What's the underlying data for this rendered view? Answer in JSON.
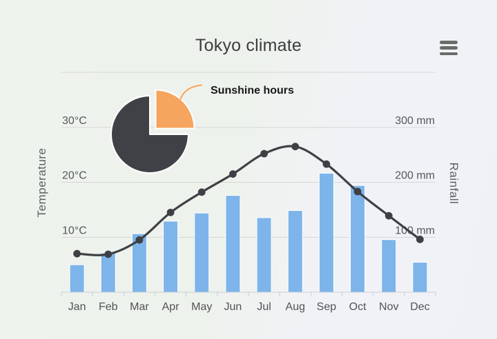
{
  "header": {
    "title": "Tokyo climate"
  },
  "menu": {
    "icon": "hamburger-icon"
  },
  "axes": {
    "x": {
      "categories": [
        "Jan",
        "Feb",
        "Mar",
        "Apr",
        "May",
        "Jun",
        "Jul",
        "Aug",
        "Sep",
        "Oct",
        "Nov",
        "Dec"
      ]
    },
    "temperature": {
      "title": "Temperature",
      "ticks": [
        {
          "value": 10,
          "label": "10°C"
        },
        {
          "value": 20,
          "label": "20°C"
        },
        {
          "value": 30,
          "label": "30°C"
        }
      ],
      "min_value": 0,
      "max_value": 40
    },
    "rainfall": {
      "title": "Rainfall",
      "ticks": [
        {
          "value": 100,
          "label": "100 mm"
        },
        {
          "value": 200,
          "label": "200 mm"
        },
        {
          "value": 300,
          "label": "300 mm"
        }
      ],
      "grid_values": [
        100,
        200,
        300,
        400
      ],
      "min_value": 0,
      "max_value": 400
    }
  },
  "chart_data": [
    {
      "type": "bar",
      "name": "Rainfall",
      "axis": "rainfall",
      "unit": "mm",
      "categories": [
        "Jan",
        "Feb",
        "Mar",
        "Apr",
        "May",
        "Jun",
        "Jul",
        "Aug",
        "Sep",
        "Oct",
        "Nov",
        "Dec"
      ],
      "values": [
        49.9,
        71.5,
        106.4,
        129.2,
        144.0,
        176.0,
        135.6,
        148.5,
        216.4,
        194.1,
        95.6,
        54.4
      ],
      "ylim": [
        0,
        400
      ],
      "color": "#7db4ea",
      "border_color": "#ffffff",
      "legend": "none"
    },
    {
      "type": "line",
      "name": "Temperature",
      "axis": "temperature",
      "unit": "°C",
      "line_style": "spline",
      "marker": "circle",
      "categories": [
        "Jan",
        "Feb",
        "Mar",
        "Apr",
        "May",
        "Jun",
        "Jul",
        "Aug",
        "Sep",
        "Oct",
        "Nov",
        "Dec"
      ],
      "values": [
        7.0,
        6.9,
        9.5,
        14.5,
        18.2,
        21.5,
        25.2,
        26.5,
        23.3,
        18.3,
        13.9,
        9.6
      ],
      "ylim": [
        0,
        40
      ],
      "color": "#3f4045",
      "legend": "none"
    },
    {
      "type": "pie",
      "name": "Sunshine",
      "legend": "none",
      "slices": [
        {
          "label": "Sunshine hours",
          "value": 25,
          "color": "#f5a55e",
          "exploded": true
        },
        {
          "label": "",
          "value": 75,
          "color": "#404147",
          "exploded": false
        }
      ]
    }
  ],
  "colors": {
    "background_left": "#eff3ee",
    "background_right": "#f1f2f7",
    "gridline": "#d5d7d2",
    "axis_line": "#c9ced5",
    "title_text": "#3b3c3e",
    "muted_text": "#55585b",
    "menu_icon": "#6b6b6b"
  }
}
